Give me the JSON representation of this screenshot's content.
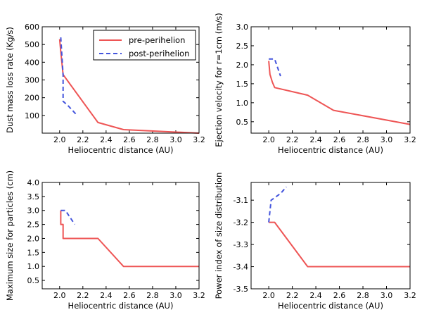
{
  "chart_data": [
    {
      "type": "line",
      "xlabel": "Heliocentric distance (AU)",
      "ylabel": "Dust mass loss rate (Kg/s)",
      "xlim": [
        1.85,
        3.2
      ],
      "ylim": [
        0,
        600
      ],
      "xticks": [
        "2.0",
        "2.2",
        "2.4",
        "2.6",
        "2.8",
        "3.0",
        "3.2"
      ],
      "yticks": [
        "100",
        "200",
        "300",
        "400",
        "500",
        "600"
      ],
      "legend": "top-right",
      "series": [
        {
          "name": "pre-perihelion",
          "color": "#ee5555",
          "style": "solid",
          "x": [
            2.0,
            2.01,
            2.03,
            2.33,
            2.55,
            3.2
          ],
          "y": [
            530,
            460,
            330,
            60,
            20,
            0
          ]
        },
        {
          "name": "post-perihelion",
          "color": "#4455dd",
          "style": "dashed",
          "x": [
            2.01,
            2.03,
            2.03,
            2.08,
            2.15
          ],
          "y": [
            540,
            330,
            180,
            150,
            100
          ]
        }
      ]
    },
    {
      "type": "line",
      "xlabel": "Heliocentric distance (AU)",
      "ylabel": "Ejection velocity for r=1cm (m/s)",
      "xlim": [
        1.85,
        3.2
      ],
      "ylim": [
        0.2,
        3.0
      ],
      "xticks": [
        "2.0",
        "2.2",
        "2.4",
        "2.6",
        "2.8",
        "3.0",
        "3.2"
      ],
      "yticks": [
        "0.5",
        "1.0",
        "1.5",
        "2.0",
        "2.5",
        "3.0"
      ],
      "series": [
        {
          "name": "pre-perihelion",
          "color": "#ee5555",
          "style": "solid",
          "x": [
            2.0,
            2.01,
            2.03,
            2.05,
            2.33,
            2.55,
            3.2
          ],
          "y": [
            2.1,
            1.75,
            1.55,
            1.4,
            1.2,
            0.8,
            0.43
          ]
        },
        {
          "name": "post-perihelion",
          "color": "#4455dd",
          "style": "dashed",
          "x": [
            2.0,
            2.05,
            2.1
          ],
          "y": [
            2.15,
            2.15,
            1.7
          ]
        }
      ]
    },
    {
      "type": "line",
      "xlabel": "Heliocentric distance (AU)",
      "ylabel": "Maximum size for particles (cm)",
      "xlim": [
        1.85,
        3.2
      ],
      "ylim": [
        0.2,
        4.0
      ],
      "xticks": [
        "2.0",
        "2.2",
        "2.4",
        "2.6",
        "2.8",
        "3.0",
        "3.2"
      ],
      "yticks": [
        "0.5",
        "1.0",
        "1.5",
        "2.0",
        "2.5",
        "3.0",
        "3.5",
        "4.0"
      ],
      "series": [
        {
          "name": "pre-perihelion",
          "color": "#ee5555",
          "style": "solid",
          "x": [
            2.01,
            2.01,
            2.03,
            2.03,
            2.33,
            2.55,
            3.2
          ],
          "y": [
            3.0,
            2.5,
            2.5,
            2.0,
            2.0,
            1.0,
            1.0
          ]
        },
        {
          "name": "post-perihelion",
          "color": "#4455dd",
          "style": "dashed",
          "x": [
            2.01,
            2.05,
            2.13
          ],
          "y": [
            3.0,
            3.0,
            2.5
          ]
        }
      ]
    },
    {
      "type": "line",
      "xlabel": "Heliocentric distance (AU)",
      "ylabel": "Power index of size distribution",
      "xlim": [
        1.85,
        3.2
      ],
      "ylim": [
        -3.5,
        -3.02
      ],
      "invert_y": true,
      "xticks": [
        "2.0",
        "2.2",
        "2.4",
        "2.6",
        "2.8",
        "3.0",
        "3.2"
      ],
      "yticks": [
        "-3.5",
        "-3.4",
        "-3.3",
        "-3.2",
        "-3.1"
      ],
      "series": [
        {
          "name": "pre-perihelion",
          "color": "#ee5555",
          "style": "solid",
          "x": [
            2.0,
            2.05,
            2.33,
            3.2
          ],
          "y": [
            -3.2,
            -3.2,
            -3.4,
            -3.4
          ]
        },
        {
          "name": "post-perihelion",
          "color": "#4455dd",
          "style": "dashed",
          "x": [
            2.0,
            2.01,
            2.02,
            2.1,
            2.15
          ],
          "y": [
            -3.2,
            -3.15,
            -3.1,
            -3.07,
            -3.04
          ]
        }
      ]
    }
  ]
}
